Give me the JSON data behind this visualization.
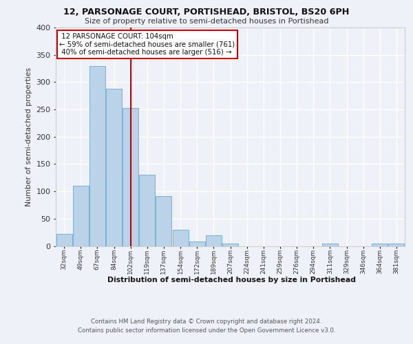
{
  "title1": "12, PARSONAGE COURT, PORTISHEAD, BRISTOL, BS20 6PH",
  "title2": "Size of property relative to semi-detached houses in Portishead",
  "xlabel": "Distribution of semi-detached houses by size in Portishead",
  "ylabel": "Number of semi-detached properties",
  "bin_labels": [
    "32sqm",
    "49sqm",
    "67sqm",
    "84sqm",
    "102sqm",
    "119sqm",
    "137sqm",
    "154sqm",
    "172sqm",
    "189sqm",
    "207sqm",
    "224sqm",
    "241sqm",
    "259sqm",
    "276sqm",
    "294sqm",
    "311sqm",
    "329sqm",
    "346sqm",
    "364sqm",
    "381sqm"
  ],
  "bar_heights": [
    22,
    110,
    330,
    288,
    252,
    131,
    91,
    29,
    8,
    20,
    5,
    0,
    0,
    0,
    0,
    0,
    4,
    0,
    0,
    4,
    4
  ],
  "bar_color": "#bad3e8",
  "bar_edgecolor": "#7aafd4",
  "property_bin_index": 4,
  "property_label": "12 PARSONAGE COURT: 104sqm",
  "pct_smaller": 59,
  "n_smaller": 761,
  "pct_larger": 40,
  "n_larger": 516,
  "vline_color": "#cc0000",
  "box_edgecolor": "#cc0000",
  "bg_color": "#eef2f8",
  "ylim": [
    0,
    400
  ],
  "yticks": [
    0,
    50,
    100,
    150,
    200,
    250,
    300,
    350,
    400
  ],
  "footer1": "Contains HM Land Registry data © Crown copyright and database right 2024.",
  "footer2": "Contains public sector information licensed under the Open Government Licence v3.0."
}
